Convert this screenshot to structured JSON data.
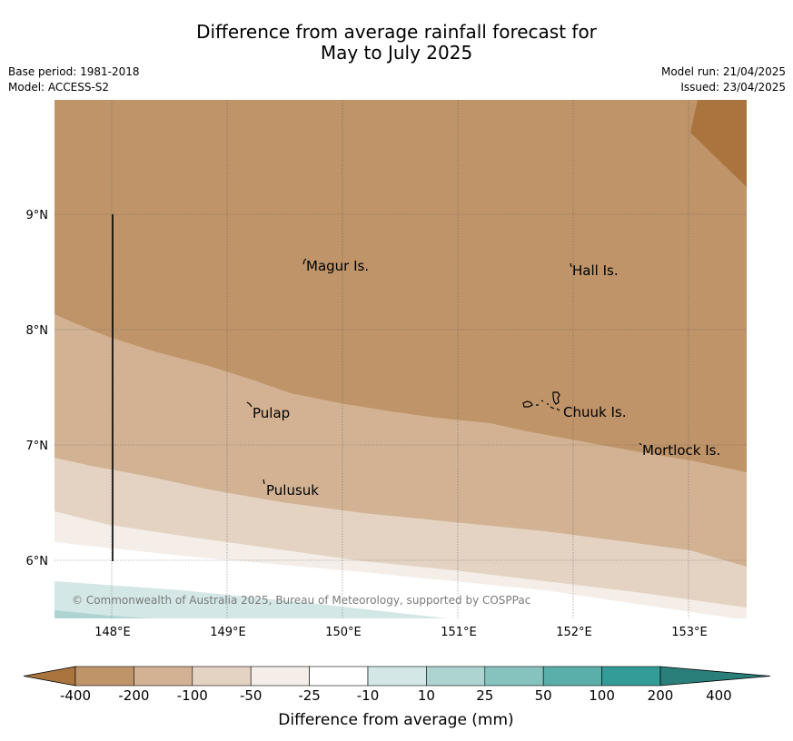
{
  "title": {
    "line1": "Difference from average rainfall forecast for",
    "line2": "May to July 2025"
  },
  "meta_left": {
    "base_period": "Base period: 1981-2018",
    "model": "Model: ACCESS-S2"
  },
  "meta_right": {
    "model_run": "Model run: 21/04/2025",
    "issued": "Issued: 23/04/2025"
  },
  "map": {
    "lon_ticks": [
      "148°E",
      "149°E",
      "150°E",
      "151°E",
      "152°E",
      "153°E"
    ],
    "lat_ticks": [
      "9°N",
      "8°N",
      "7°N",
      "6°N"
    ],
    "places": [
      "Magur Is.",
      "Hall Is.",
      "Pulap",
      "Chuuk Is.",
      "Mortlock Is.",
      "Pulusuk"
    ],
    "copyright": "© Commonwealth of Australia 2025, Bureau of Meteorology, supported by COSPPac"
  },
  "colorbar": {
    "labels": [
      "-400",
      "-200",
      "-100",
      "-50",
      "-25",
      "-10",
      "10",
      "25",
      "50",
      "100",
      "200",
      "400"
    ],
    "colors": [
      "#a9743e",
      "#bf9469",
      "#d2b293",
      "#e4d3c3",
      "#f4ede8",
      "#ffffff",
      "#d3e7e6",
      "#aed4d2",
      "#86c2be",
      "#5bafab",
      "#339c98",
      "#2a7f7b"
    ],
    "title": "Difference from average (mm)"
  }
}
